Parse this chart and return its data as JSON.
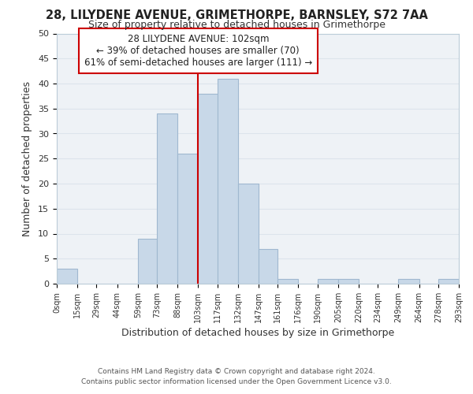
{
  "title": "28, LILYDENE AVENUE, GRIMETHORPE, BARNSLEY, S72 7AA",
  "subtitle": "Size of property relative to detached houses in Grimethorpe",
  "xlabel": "Distribution of detached houses by size in Grimethorpe",
  "ylabel": "Number of detached properties",
  "bar_edges": [
    0,
    15,
    29,
    44,
    59,
    73,
    88,
    103,
    117,
    132,
    147,
    161,
    176,
    190,
    205,
    220,
    234,
    249,
    264,
    278,
    293
  ],
  "bar_heights": [
    3,
    0,
    0,
    0,
    9,
    34,
    26,
    38,
    41,
    20,
    7,
    1,
    0,
    1,
    1,
    0,
    0,
    1,
    0,
    1
  ],
  "bar_color": "#c8d8e8",
  "bar_edgecolor": "#a0b8d0",
  "highlight_x": 103,
  "vline_color": "#cc0000",
  "ylim": [
    0,
    50
  ],
  "xlim": [
    0,
    293
  ],
  "tick_labels": [
    "0sqm",
    "15sqm",
    "29sqm",
    "44sqm",
    "59sqm",
    "73sqm",
    "88sqm",
    "103sqm",
    "117sqm",
    "132sqm",
    "147sqm",
    "161sqm",
    "176sqm",
    "190sqm",
    "205sqm",
    "220sqm",
    "234sqm",
    "249sqm",
    "264sqm",
    "278sqm",
    "293sqm"
  ],
  "annotation_title": "28 LILYDENE AVENUE: 102sqm",
  "annotation_line1": "← 39% of detached houses are smaller (70)",
  "annotation_line2": "61% of semi-detached houses are larger (111) →",
  "annotation_box_color": "#ffffff",
  "annotation_box_edgecolor": "#cc0000",
  "footer1": "Contains HM Land Registry data © Crown copyright and database right 2024.",
  "footer2": "Contains public sector information licensed under the Open Government Licence v3.0.",
  "grid_color": "#dce4ec",
  "yticks": [
    0,
    5,
    10,
    15,
    20,
    25,
    30,
    35,
    40,
    45,
    50
  ],
  "bg_color": "#eef2f6"
}
